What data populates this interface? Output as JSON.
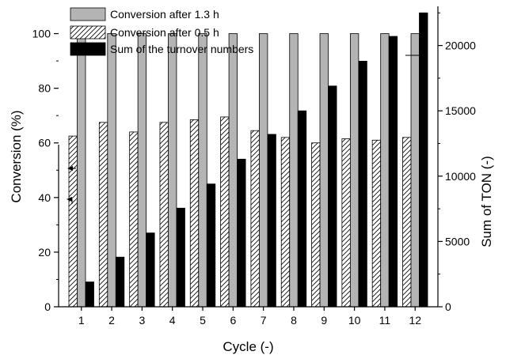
{
  "chart_data": {
    "type": "bar",
    "title": "",
    "xlabel": "Cycle (-)",
    "ylabel_left": "Conversion (%)",
    "ylabel_right": "Sum of TON (-)",
    "categories": [
      "1",
      "2",
      "3",
      "4",
      "5",
      "6",
      "7",
      "8",
      "9",
      "10",
      "11",
      "12"
    ],
    "ylim_left": [
      0,
      110
    ],
    "yticks_left": [
      0,
      20,
      40,
      60,
      80,
      100
    ],
    "ylim_right": [
      0,
      23000
    ],
    "yticks_right": [
      0,
      5000,
      10000,
      15000,
      20000
    ],
    "legend_position": "top-left",
    "series": [
      {
        "name": "Conversion after 1.3 h",
        "axis": "left",
        "style": "gray",
        "color": "#b4b4b4",
        "values": [
          100,
          100,
          100,
          100,
          100,
          100,
          100,
          100,
          100,
          100,
          100,
          100
        ]
      },
      {
        "name": "Conversion after 0.5 h",
        "axis": "left",
        "style": "hatched",
        "color": "#ffffff",
        "values": [
          62.5,
          67.5,
          64,
          67.5,
          68.5,
          69.5,
          64.5,
          62,
          60,
          61.5,
          61,
          62
        ]
      },
      {
        "name": "Sum of the turnover numbers",
        "axis": "right",
        "style": "black",
        "color": "#000000",
        "values": [
          1900,
          3800,
          5650,
          7550,
          9400,
          11300,
          13200,
          15000,
          16900,
          18800,
          20700,
          22500
        ]
      }
    ]
  }
}
